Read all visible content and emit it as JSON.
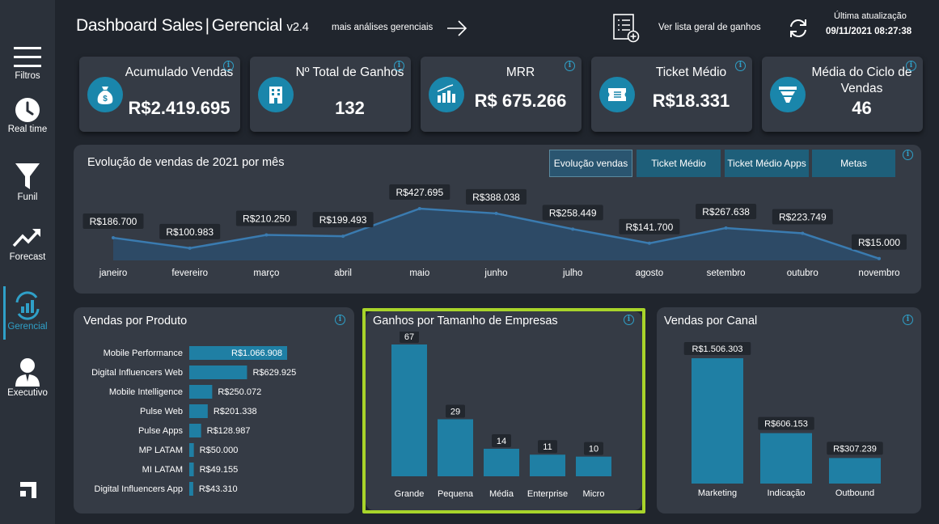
{
  "sidebar": {
    "items": [
      {
        "label": "Filtros",
        "icon": "menu-icon"
      },
      {
        "label": "Real time",
        "icon": "clock-icon"
      },
      {
        "label": "Funil",
        "icon": "funnel-icon"
      },
      {
        "label": "Forecast",
        "icon": "trend-up-icon"
      },
      {
        "label": "Gerencial",
        "icon": "bar-chart-refresh-icon"
      },
      {
        "label": "Executivo",
        "icon": "person-icon"
      }
    ],
    "active": "Gerencial",
    "logo": "brand-logo-icon"
  },
  "header": {
    "title": "Dashboard Sales",
    "separator": "|",
    "subtitle": "Gerencial",
    "version": "v2.4",
    "more_link": "mais análises gerenciais",
    "list_link": "Ver lista geral de ganhos",
    "update_label": "Última atualização",
    "update_date": "09/11/2021 08:27:38"
  },
  "kpis": [
    {
      "label": "Acumulado Vendas",
      "value": "R$2.419.695",
      "icon": "money-bag-icon"
    },
    {
      "label": "Nº Total de Ganhos",
      "value": "132",
      "icon": "building-icon"
    },
    {
      "label": "MRR",
      "value": "R$ 675.266",
      "icon": "growth-chart-icon"
    },
    {
      "label": "Ticket Médio",
      "value": "R$18.331",
      "icon": "ticket-icon"
    },
    {
      "label": "Média do Ciclo de Vendas",
      "value": "46",
      "icon": "funnel-icon"
    }
  ],
  "evolution": {
    "title": "Evolução de vendas de 2021 por mês",
    "tabs": [
      "Evolução vendas",
      "Ticket Médio",
      "Ticket Médio Apps",
      "Metas"
    ],
    "active_tab": "Evolução vendas"
  },
  "produto": {
    "title": "Vendas por Produto"
  },
  "empresas": {
    "title": "Ganhos por Tamanho de Empresas"
  },
  "canal": {
    "title": "Vendas por Canal"
  },
  "colors": {
    "accent": "#1a86ab",
    "bar": "#1f7fa4",
    "area": "#2d4a66",
    "line": "#3a7bb0",
    "highlight": "#a8d42a"
  },
  "chart_data": [
    {
      "type": "area",
      "title": "Evolução de vendas de 2021 por mês",
      "categories": [
        "janeiro",
        "fevereiro",
        "março",
        "abril",
        "maio",
        "junho",
        "julho",
        "agosto",
        "setembro",
        "outubro",
        "novembro"
      ],
      "values": [
        186700,
        100983,
        210250,
        199493,
        427695,
        388038,
        258449,
        141700,
        267638,
        223749,
        15000
      ],
      "labels": [
        "R$186.700",
        "R$100.983",
        "R$210.250",
        "R$199.493",
        "R$427.695",
        "R$388.038",
        "R$258.449",
        "R$141.700",
        "R$267.638",
        "R$223.749",
        "R$15.000"
      ]
    },
    {
      "type": "bar",
      "orientation": "horizontal",
      "title": "Vendas por Produto",
      "categories": [
        "Mobile Performance",
        "Digital Influencers Web",
        "Mobile Intelligence",
        "Pulse Web",
        "Pulse Apps",
        "MP LATAM",
        "MI LATAM",
        "Digital Influencers App"
      ],
      "values": [
        1066908,
        629925,
        250072,
        201338,
        128987,
        50000,
        49155,
        43310
      ],
      "labels": [
        "R$1.066.908",
        "R$629.925",
        "R$250.072",
        "R$201.338",
        "R$128.987",
        "R$50.000",
        "R$49.155",
        "R$43.310"
      ]
    },
    {
      "type": "bar",
      "title": "Ganhos por Tamanho de Empresas",
      "categories": [
        "Grande",
        "Pequena",
        "Média",
        "Enterprise",
        "Micro"
      ],
      "values": [
        67,
        29,
        14,
        11,
        10
      ],
      "labels": [
        "67",
        "29",
        "14",
        "11",
        "10"
      ]
    },
    {
      "type": "bar",
      "title": "Vendas por Canal",
      "categories": [
        "Marketing",
        "Indicação",
        "Outbound"
      ],
      "values": [
        1506303,
        606153,
        307239
      ],
      "labels": [
        "R$1.506.303",
        "R$606.153",
        "R$307.239"
      ]
    }
  ]
}
